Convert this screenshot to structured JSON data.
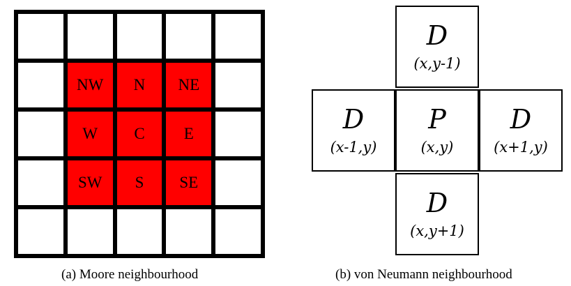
{
  "colors": {
    "neighbour_fill": "#ff0000",
    "grid_line": "#000000",
    "background": "#ffffff"
  },
  "moore": {
    "grid": [
      [
        "",
        "",
        "",
        "",
        ""
      ],
      [
        "",
        "NW",
        "N",
        "NE",
        ""
      ],
      [
        "",
        "W",
        "C",
        "E",
        ""
      ],
      [
        "",
        "SW",
        "S",
        "SE",
        ""
      ],
      [
        "",
        "",
        "",
        "",
        ""
      ]
    ],
    "caption": "(a) Moore neighbourhood"
  },
  "von_neumann": {
    "north": {
      "letter": "D",
      "coord": "(x,y-1)"
    },
    "west": {
      "letter": "D",
      "coord": "(x-1,y)"
    },
    "center": {
      "letter": "P",
      "coord": "(x,y)"
    },
    "east": {
      "letter": "D",
      "coord": "(x+1,y)"
    },
    "south": {
      "letter": "D",
      "coord": "(x,y+1)"
    },
    "caption": "(b) von Neumann neighbourhood"
  }
}
